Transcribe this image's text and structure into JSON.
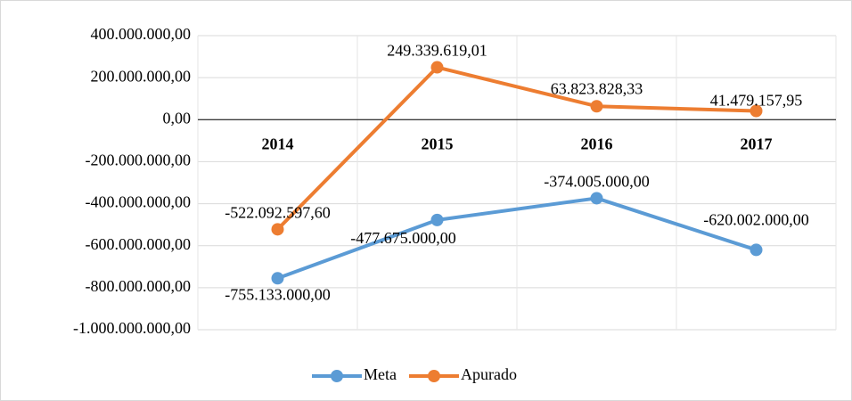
{
  "chart_data": {
    "type": "line",
    "categories": [
      "2014",
      "2015",
      "2016",
      "2017"
    ],
    "series": [
      {
        "name": "Meta",
        "color": "#5b9bd5",
        "values": [
          -755133000,
          -477675000,
          -374005000,
          -620002000
        ],
        "value_labels": [
          "-755.133.000,00",
          "-477.675.000,00",
          "-374.005.000,00",
          "-620.002.000,00"
        ]
      },
      {
        "name": "Apurado",
        "color": "#ed7d31",
        "values": [
          -522092597.6,
          249339619.01,
          63823828.33,
          41479157.95
        ],
        "value_labels": [
          "-522.092.597,60",
          "249.339.619,01",
          "63.823.828,33",
          "41.479.157,95"
        ]
      }
    ],
    "ylim": [
      -1000000000,
      400000000
    ],
    "yticks": [
      {
        "value": 400000000,
        "label": "400.000.000,00"
      },
      {
        "value": 200000000,
        "label": "200.000.000,00"
      },
      {
        "value": 0,
        "label": "0,00"
      },
      {
        "value": -200000000,
        "label": "-200.000.000,00"
      },
      {
        "value": -400000000,
        "label": "-400.000.000,00"
      },
      {
        "value": -600000000,
        "label": "-600.000.000,00"
      },
      {
        "value": -800000000,
        "label": "-800.000.000,00"
      },
      {
        "value": -1000000000,
        "label": "-1.000.000.000,00"
      }
    ],
    "grid": true,
    "legend": "bottom"
  }
}
